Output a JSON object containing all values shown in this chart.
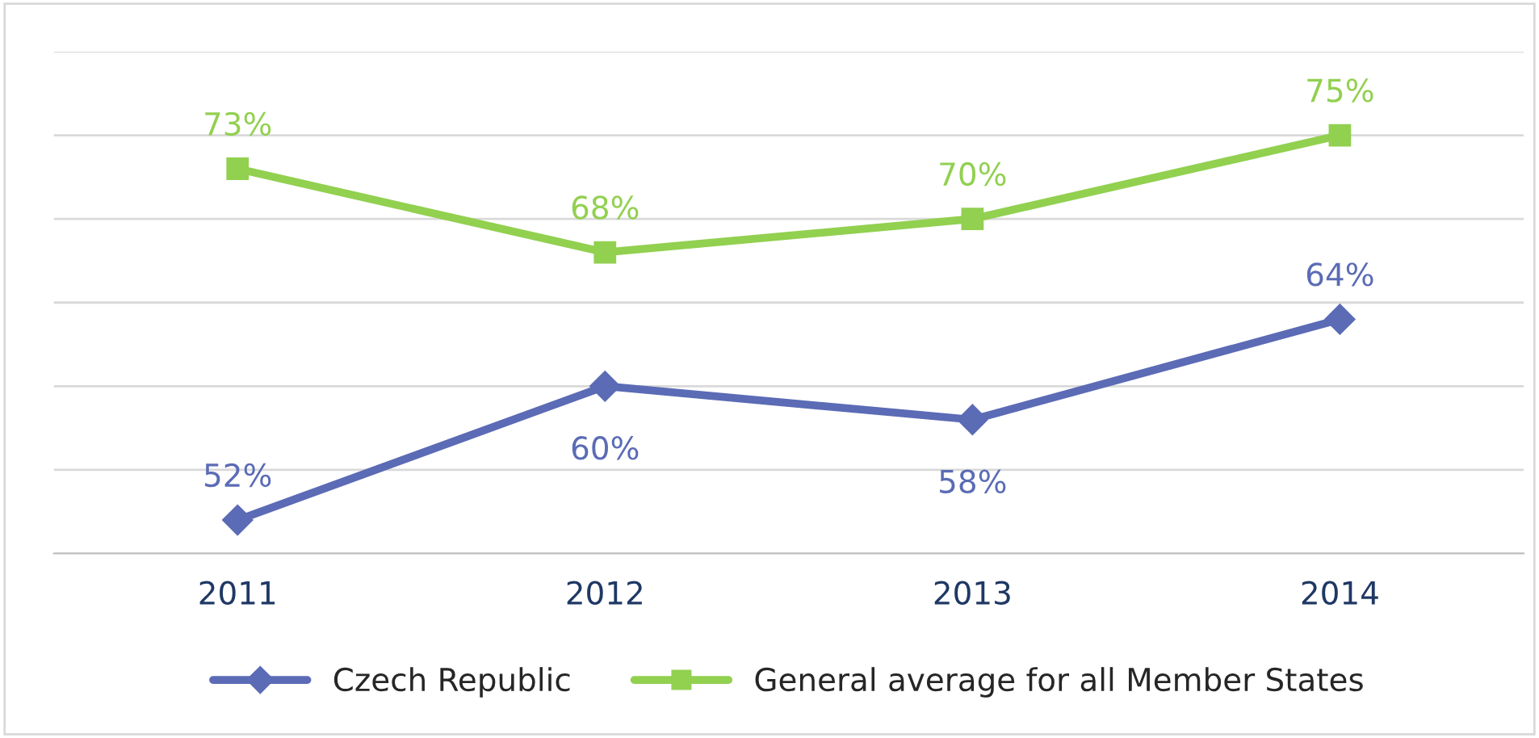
{
  "chart_data": {
    "type": "line",
    "categories": [
      "2011",
      "2012",
      "2013",
      "2014"
    ],
    "series": [
      {
        "name": "Czech Republic",
        "color": "#5b6bb5",
        "values": [
          52,
          60,
          58,
          64
        ],
        "value_labels": [
          "52%",
          "60%",
          "58%",
          "64%"
        ],
        "marker": "diamond"
      },
      {
        "name": "General average for all Member States",
        "color": "#92d050",
        "values": [
          73,
          68,
          70,
          75
        ],
        "value_labels": [
          "73%",
          "68%",
          "70%",
          "75%"
        ],
        "marker": "square"
      }
    ],
    "ylim": [
      50,
      80
    ],
    "yticks": [
      {
        "value": 50,
        "label": null
      },
      {
        "value": 55,
        "label": null
      },
      {
        "value": 60,
        "label": null
      },
      {
        "value": 65,
        "label": null
      },
      {
        "value": 70,
        "label": null
      },
      {
        "value": 75,
        "label": null
      },
      {
        "value": 80,
        "label": null
      }
    ],
    "tick_labels": "x",
    "grid": "y",
    "legend": "bottom",
    "line_style": "solid"
  }
}
